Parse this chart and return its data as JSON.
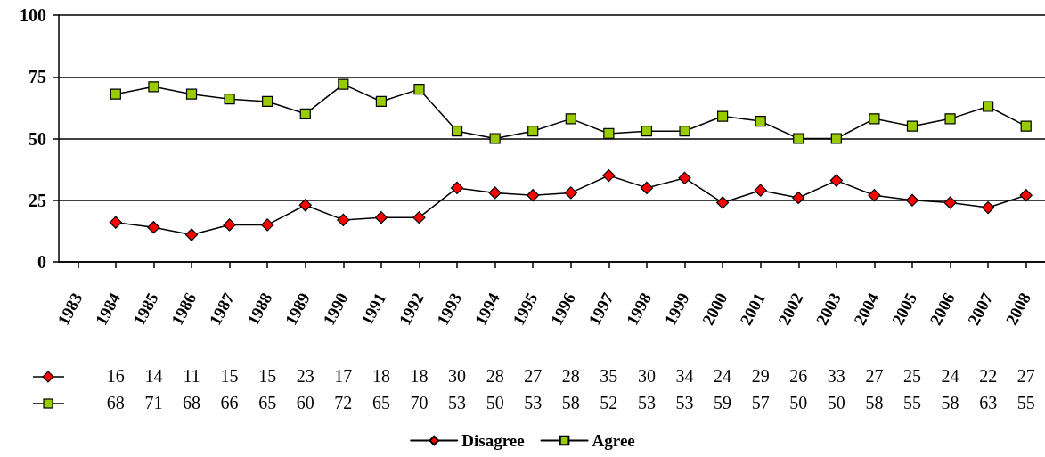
{
  "chart_data": {
    "type": "line",
    "categories": [
      "1983",
      "1984",
      "1985",
      "1986",
      "1987",
      "1988",
      "1989",
      "1990",
      "1991",
      "1992",
      "1993",
      "1994",
      "1995",
      "1996",
      "1997",
      "1998",
      "1999",
      "2000",
      "2001",
      "2002",
      "2003",
      "2004",
      "2005",
      "2006",
      "2007",
      "2008"
    ],
    "series": [
      {
        "name": "Disagree",
        "color": "#ff0000",
        "marker": "diamond",
        "values": [
          null,
          16,
          14,
          11,
          15,
          15,
          23,
          17,
          18,
          18,
          30,
          28,
          27,
          28,
          35,
          30,
          34,
          24,
          29,
          26,
          33,
          27,
          25,
          24,
          22,
          27
        ]
      },
      {
        "name": "Agree",
        "color": "#99cc00",
        "marker": "square",
        "values": [
          null,
          68,
          71,
          68,
          66,
          65,
          60,
          72,
          65,
          70,
          53,
          50,
          53,
          58,
          52,
          53,
          53,
          59,
          57,
          50,
          50,
          58,
          55,
          58,
          63,
          55
        ]
      }
    ],
    "ylim": [
      0,
      100
    ],
    "yticks": [
      0,
      25,
      50,
      75,
      100
    ],
    "grid": "y",
    "legend": "bottom",
    "line_style": "solid",
    "data_labels": true
  }
}
